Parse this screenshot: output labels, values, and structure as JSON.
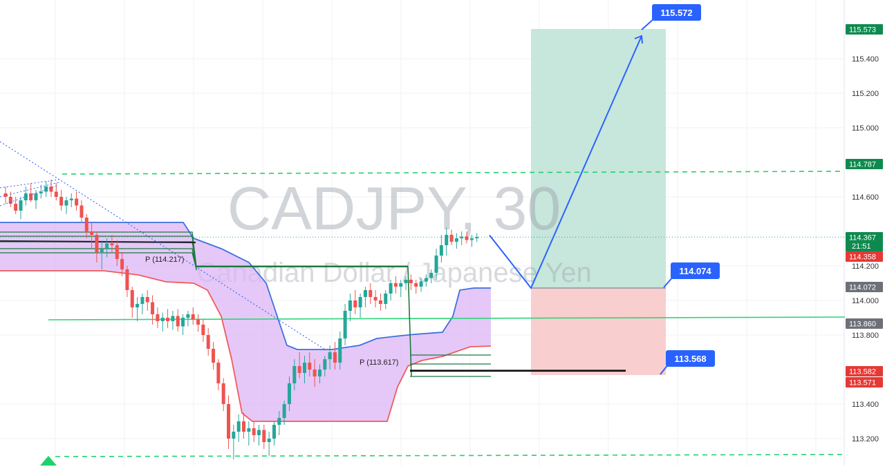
{
  "watermark": {
    "symbol": "CADJPY, 30",
    "description": "Canadian Dollar / Japanese Yen"
  },
  "colors": {
    "bullish": "#26a69a",
    "bearish": "#ef5350",
    "cloud_fill": "#dcb6f5",
    "cloud_upper": "#3b6fe0",
    "cloud_lower": "#f05a5a",
    "pivot_green": "#1b7a3d",
    "dashed_green": "#1fd16a",
    "solid_green": "#2fd47a",
    "trend_blue": "#2962ff",
    "target_zone": "#b9e0d3",
    "stop_zone": "#f7c9c9",
    "tag_green": "#0f8a4f",
    "tag_red": "#e53935",
    "tag_grey": "#6d7078",
    "tag_callout": "#2962ff"
  },
  "chart_data": {
    "type": "candlestick",
    "title": "CADJPY, 30",
    "subtitle": "Canadian Dollar / Japanese Yen",
    "y_axis": {
      "position": "right",
      "range": [
        113.06,
        115.66
      ],
      "ticks": [
        "115.400",
        "115.200",
        "115.000",
        "114.600",
        "114.200",
        "114.000",
        "113.800",
        "113.400",
        "113.200"
      ],
      "grid": true
    },
    "price_tags": [
      {
        "label": "115.573",
        "value": 115.573,
        "color": "green"
      },
      {
        "label": "114.787",
        "value": 114.787,
        "color": "green"
      },
      {
        "label": "114.367",
        "value": 114.367,
        "color": "green",
        "sublabel": "21:51"
      },
      {
        "label": "114.358",
        "value": 114.358,
        "color": "red"
      },
      {
        "label": "114.072",
        "value": 114.072,
        "color": "grey"
      },
      {
        "label": "113.860",
        "value": 113.86,
        "color": "grey"
      },
      {
        "label": "113.582",
        "value": 113.582,
        "color": "red"
      },
      {
        "label": "113.571",
        "value": 113.571,
        "color": "red"
      }
    ],
    "callouts": [
      {
        "label": "115.572",
        "value": 115.572,
        "role": "take-profit"
      },
      {
        "label": "114.074",
        "value": 114.074,
        "role": "entry"
      },
      {
        "label": "113.568",
        "value": 113.568,
        "role": "stop-loss"
      }
    ],
    "pivots": [
      {
        "label": "P (114.217)",
        "value": 114.217
      },
      {
        "label": "P (113.617)",
        "value": 113.617
      }
    ],
    "levels": {
      "resistance_dashed": 114.74,
      "support_dashed": 113.1,
      "horizontal_green": 113.9,
      "entry": 114.072,
      "target": 115.572,
      "stop": 113.568,
      "last_price": 114.367
    },
    "projection": [
      114.37,
      114.072,
      115.572
    ],
    "candles": [
      [
        114.62,
        114.66,
        114.56,
        114.6
      ],
      [
        114.6,
        114.63,
        114.54,
        114.56
      ],
      [
        114.56,
        114.6,
        114.5,
        114.52
      ],
      [
        114.52,
        114.6,
        114.47,
        114.58
      ],
      [
        114.58,
        114.66,
        114.55,
        114.62
      ],
      [
        114.62,
        114.68,
        114.57,
        114.58
      ],
      [
        114.58,
        114.64,
        114.53,
        114.62
      ],
      [
        114.62,
        114.67,
        114.59,
        114.63
      ],
      [
        114.63,
        114.69,
        114.6,
        114.66
      ],
      [
        114.66,
        114.7,
        114.6,
        114.63
      ],
      [
        114.63,
        114.68,
        114.58,
        114.6
      ],
      [
        114.6,
        114.64,
        114.52,
        114.55
      ],
      [
        114.55,
        114.6,
        114.5,
        114.58
      ],
      [
        114.58,
        114.62,
        114.54,
        114.59
      ],
      [
        114.59,
        114.63,
        114.52,
        114.55
      ],
      [
        114.55,
        114.58,
        114.45,
        114.48
      ],
      [
        114.48,
        114.5,
        114.36,
        114.4
      ],
      [
        114.4,
        114.45,
        114.3,
        114.38
      ],
      [
        114.38,
        114.4,
        114.22,
        114.28
      ],
      [
        114.28,
        114.34,
        114.18,
        114.3
      ],
      [
        114.3,
        114.36,
        114.25,
        114.33
      ],
      [
        114.33,
        114.38,
        114.28,
        114.32
      ],
      [
        114.32,
        114.35,
        114.2,
        114.24
      ],
      [
        114.24,
        114.28,
        114.14,
        114.18
      ],
      [
        114.18,
        114.2,
        114.02,
        114.06
      ],
      [
        114.06,
        114.08,
        113.9,
        113.96
      ],
      [
        113.96,
        114.02,
        113.88,
        113.98
      ],
      [
        113.98,
        114.04,
        113.92,
        114.02
      ],
      [
        114.02,
        114.06,
        113.94,
        113.99
      ],
      [
        113.99,
        114.03,
        113.86,
        113.92
      ],
      [
        113.92,
        113.96,
        113.84,
        113.88
      ],
      [
        113.88,
        113.93,
        113.82,
        113.9
      ],
      [
        113.9,
        113.95,
        113.84,
        113.88
      ],
      [
        113.88,
        113.94,
        113.83,
        113.91
      ],
      [
        113.91,
        113.95,
        113.82,
        113.85
      ],
      [
        113.85,
        113.92,
        113.8,
        113.9
      ],
      [
        113.9,
        113.94,
        113.85,
        113.92
      ],
      [
        113.92,
        113.96,
        113.86,
        113.89
      ],
      [
        113.89,
        113.92,
        113.82,
        113.86
      ],
      [
        113.86,
        113.89,
        113.76,
        113.8
      ],
      [
        113.8,
        113.84,
        113.68,
        113.72
      ],
      [
        113.72,
        113.76,
        113.6,
        113.64
      ],
      [
        113.64,
        113.66,
        113.48,
        113.52
      ],
      [
        113.52,
        113.55,
        113.36,
        113.4
      ],
      [
        113.4,
        113.45,
        113.14,
        113.2
      ],
      [
        113.2,
        113.28,
        113.08,
        113.24
      ],
      [
        113.24,
        113.34,
        113.18,
        113.3
      ],
      [
        113.3,
        113.35,
        113.2,
        113.24
      ],
      [
        113.24,
        113.3,
        113.16,
        113.26
      ],
      [
        113.26,
        113.3,
        113.18,
        113.22
      ],
      [
        113.22,
        113.28,
        113.16,
        113.25
      ],
      [
        113.25,
        113.28,
        113.14,
        113.18
      ],
      [
        113.18,
        113.24,
        113.1,
        113.2
      ],
      [
        113.2,
        113.3,
        113.16,
        113.28
      ],
      [
        113.28,
        113.36,
        113.22,
        113.32
      ],
      [
        113.32,
        113.42,
        113.28,
        113.4
      ],
      [
        113.4,
        113.56,
        113.36,
        113.52
      ],
      [
        113.52,
        113.66,
        113.48,
        113.62
      ],
      [
        113.62,
        113.7,
        113.55,
        113.58
      ],
      [
        113.58,
        113.68,
        113.52,
        113.64
      ],
      [
        113.64,
        113.7,
        113.56,
        113.6
      ],
      [
        113.6,
        113.66,
        113.5,
        113.56
      ],
      [
        113.56,
        113.63,
        113.52,
        113.6
      ],
      [
        113.6,
        113.68,
        113.56,
        113.66
      ],
      [
        113.66,
        113.74,
        113.6,
        113.7
      ],
      [
        113.7,
        113.76,
        113.6,
        113.64
      ],
      [
        113.64,
        113.82,
        113.6,
        113.78
      ],
      [
        113.78,
        113.98,
        113.74,
        113.94
      ],
      [
        113.94,
        114.04,
        113.88,
        114.0
      ],
      [
        114.0,
        114.06,
        113.92,
        113.96
      ],
      [
        113.96,
        114.04,
        113.9,
        114.02
      ],
      [
        114.02,
        114.08,
        113.96,
        114.06
      ],
      [
        114.06,
        114.1,
        113.98,
        114.02
      ],
      [
        114.02,
        114.06,
        113.96,
        114.0
      ],
      [
        114.0,
        114.04,
        113.94,
        113.98
      ],
      [
        113.98,
        114.06,
        113.95,
        114.04
      ],
      [
        114.04,
        114.12,
        114.0,
        114.1
      ],
      [
        114.1,
        114.14,
        114.04,
        114.08
      ],
      [
        114.08,
        114.12,
        114.02,
        114.1
      ],
      [
        114.1,
        114.14,
        114.06,
        114.12
      ],
      [
        114.12,
        114.15,
        114.06,
        114.1
      ],
      [
        114.1,
        114.12,
        114.04,
        114.08
      ],
      [
        114.08,
        114.13,
        114.05,
        114.11
      ],
      [
        114.11,
        114.15,
        114.08,
        114.13
      ],
      [
        114.13,
        114.18,
        114.1,
        114.16
      ],
      [
        114.16,
        114.3,
        114.12,
        114.26
      ],
      [
        114.26,
        114.38,
        114.22,
        114.32
      ],
      [
        114.32,
        114.42,
        114.26,
        114.38
      ],
      [
        114.38,
        114.41,
        114.32,
        114.34
      ],
      [
        114.34,
        114.39,
        114.3,
        114.36
      ],
      [
        114.36,
        114.4,
        114.32,
        114.37
      ],
      [
        114.37,
        114.4,
        114.33,
        114.35
      ],
      [
        114.35,
        114.38,
        114.31,
        114.36
      ],
      [
        114.36,
        114.39,
        114.34,
        114.367
      ]
    ]
  }
}
